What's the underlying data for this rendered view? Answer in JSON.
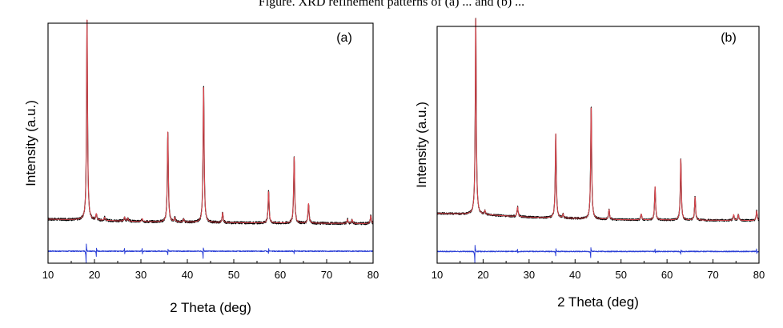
{
  "caption": "Figure. XRD refinement patterns of (a) ... and (b) ...",
  "chart_data": [
    {
      "type": "line",
      "panel_label": "(a)",
      "xlabel": "2 Theta (deg)",
      "ylabel": "Intensity (a.u.)",
      "xlim": [
        10,
        80
      ],
      "xticks": [
        "10",
        "20",
        "30",
        "40",
        "50",
        "60",
        "70",
        "80"
      ],
      "y_ticks_shown": false,
      "grid": false,
      "legend": "none",
      "series": [
        {
          "color": "#000000",
          "width": 1.2,
          "noise": 1.2,
          "offset": 0,
          "background": [
            [
              10,
              4.0
            ],
            [
              18,
              3.6
            ],
            [
              30,
              2.8
            ],
            [
              50,
              2.2
            ],
            [
              80,
              1.8
            ]
          ],
          "peaks": [
            [
              18.4,
              100
            ],
            [
              20.4,
              3
            ],
            [
              22.2,
              1.5
            ],
            [
              26.5,
              2
            ],
            [
              27.2,
              1.5
            ],
            [
              30.3,
              1.5
            ],
            [
              35.8,
              45
            ],
            [
              37.3,
              2
            ],
            [
              39.2,
              1.5
            ],
            [
              43.5,
              69
            ],
            [
              47.6,
              5
            ],
            [
              57.5,
              16
            ],
            [
              63.0,
              33
            ],
            [
              66.1,
              10
            ],
            [
              74.5,
              2
            ],
            [
              75.5,
              2
            ],
            [
              79.5,
              4
            ]
          ]
        },
        {
          "color": "#e0484f",
          "width": 1.0,
          "noise": 0,
          "offset": 0,
          "background": [
            [
              10,
              4.0
            ],
            [
              18,
              3.6
            ],
            [
              30,
              2.8
            ],
            [
              50,
              2.2
            ],
            [
              80,
              1.8
            ]
          ],
          "peaks": [
            [
              18.4,
              100
            ],
            [
              20.4,
              3
            ],
            [
              22.2,
              1.5
            ],
            [
              26.5,
              2
            ],
            [
              27.2,
              1.5
            ],
            [
              30.3,
              1.5
            ],
            [
              35.8,
              45
            ],
            [
              37.3,
              2
            ],
            [
              39.2,
              1.5
            ],
            [
              43.5,
              69
            ],
            [
              47.6,
              5
            ],
            [
              57.5,
              16
            ],
            [
              63.0,
              33
            ],
            [
              66.1,
              10
            ],
            [
              74.5,
              2
            ],
            [
              75.5,
              2
            ],
            [
              79.5,
              4
            ]
          ]
        },
        {
          "color": "#2b3fd6",
          "width": 1.0,
          "noise": 0.5,
          "offset": -12,
          "background": [
            [
              10,
              0
            ],
            [
              80,
              0
            ]
          ],
          "spikes": [
            [
              18.2,
              -6,
              6
            ],
            [
              20.4,
              -2.5,
              2.5
            ],
            [
              26.5,
              2,
              -1.5
            ],
            [
              30.3,
              1.8,
              -1.5
            ],
            [
              35.8,
              -2,
              2
            ],
            [
              43.4,
              -3.5,
              3
            ],
            [
              57.5,
              -1.5,
              1.5
            ],
            [
              63.0,
              -1.2,
              1.2
            ]
          ]
        }
      ]
    },
    {
      "type": "line",
      "panel_label": "(b)",
      "xlabel": "2 Theta (deg)",
      "ylabel": "Intensity (a.u.)",
      "xlim": [
        10,
        80
      ],
      "xticks": [
        "10",
        "20",
        "30",
        "40",
        "50",
        "60",
        "70",
        "80"
      ],
      "y_ticks_shown": false,
      "grid": false,
      "legend": "none",
      "series": [
        {
          "color": "#000000",
          "width": 1.2,
          "noise": 1.0,
          "offset": 0,
          "background": [
            [
              10,
              6.5
            ],
            [
              18,
              6.0
            ],
            [
              30,
              4.5
            ],
            [
              50,
              3.2
            ],
            [
              80,
              2.8
            ]
          ],
          "peaks": [
            [
              18.4,
              100
            ],
            [
              20.4,
              2
            ],
            [
              27.5,
              5
            ],
            [
              35.8,
              43
            ],
            [
              37.4,
              2
            ],
            [
              43.5,
              58
            ],
            [
              47.4,
              5
            ],
            [
              54.4,
              3
            ],
            [
              57.4,
              17
            ],
            [
              63.0,
              31
            ],
            [
              66.1,
              12
            ],
            [
              74.5,
              3
            ],
            [
              75.5,
              3
            ],
            [
              79.5,
              5
            ]
          ]
        },
        {
          "color": "#e0484f",
          "width": 1.0,
          "noise": 0,
          "offset": 0,
          "background": [
            [
              10,
              6.5
            ],
            [
              18,
              6.0
            ],
            [
              30,
              4.5
            ],
            [
              50,
              3.2
            ],
            [
              80,
              2.8
            ]
          ],
          "peaks": [
            [
              18.4,
              100
            ],
            [
              20.4,
              2
            ],
            [
              27.5,
              5
            ],
            [
              35.8,
              43
            ],
            [
              37.4,
              2
            ],
            [
              43.5,
              58
            ],
            [
              47.4,
              5
            ],
            [
              54.4,
              3
            ],
            [
              57.4,
              17
            ],
            [
              63.0,
              31
            ],
            [
              66.1,
              12
            ],
            [
              74.5,
              3
            ],
            [
              75.5,
              3
            ],
            [
              79.5,
              5
            ]
          ]
        },
        {
          "color": "#2b3fd6",
          "width": 1.0,
          "noise": 0.5,
          "offset": -13,
          "background": [
            [
              10,
              0
            ],
            [
              80,
              0
            ]
          ],
          "spikes": [
            [
              18.2,
              -6,
              5
            ],
            [
              27.5,
              1.5,
              -1
            ],
            [
              35.8,
              -2,
              2
            ],
            [
              43.4,
              -3,
              3
            ],
            [
              57.4,
              1,
              -1
            ],
            [
              63.0,
              -1.5,
              1.5
            ],
            [
              79.5,
              1.5,
              -1
            ]
          ]
        }
      ]
    }
  ]
}
